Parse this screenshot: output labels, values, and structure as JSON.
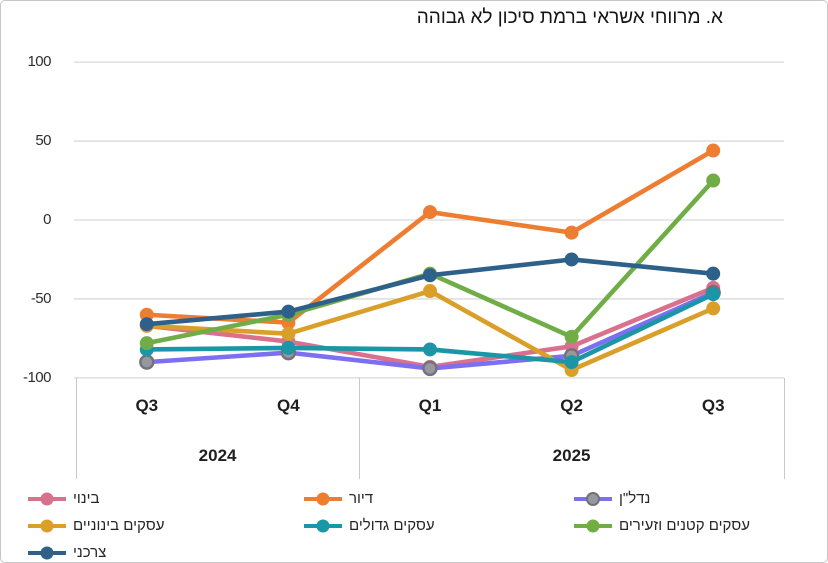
{
  "title": "א. מרווחי אשראי ברמת סיכון לא גבוהה",
  "chart_data": {
    "type": "line",
    "categories": [
      "Q3 2024",
      "Q4 2024",
      "Q1 2025",
      "Q2 2025",
      "Q3 2025"
    ],
    "x_groups": [
      {
        "year": "2024",
        "quarters": [
          "Q3",
          "Q4"
        ]
      },
      {
        "year": "2025",
        "quarters": [
          "Q1",
          "Q2",
          "Q3"
        ]
      }
    ],
    "yticks": [
      100,
      50,
      0,
      -50,
      -100
    ],
    "ylim": [
      -100,
      100
    ],
    "grid": true,
    "legend_position": "bottom",
    "series": [
      {
        "name": "בינוי",
        "color": "#D9718D",
        "values": [
          -67,
          -77,
          -93,
          -80,
          -43
        ]
      },
      {
        "name": "דיור",
        "color": "#ED7D31",
        "values": [
          -60,
          -65,
          5,
          -8,
          44
        ]
      },
      {
        "name": "נדל\"ן",
        "color": "#7C6FF0",
        "marker_fill": "#97979F",
        "marker_stroke": "#72727A",
        "values": [
          -90,
          -84,
          -94,
          -86,
          -46
        ]
      },
      {
        "name": "עסקים בינוניים",
        "color": "#DA9F28",
        "values": [
          -67,
          -72,
          -45,
          -95,
          -56
        ]
      },
      {
        "name": "עסקים גדולים",
        "color": "#1B96A6",
        "values": [
          -82,
          -81,
          -82,
          -90,
          -47
        ]
      },
      {
        "name": "עסקים קטנים וזעירים",
        "color": "#70AD47",
        "values": [
          -78,
          -60,
          -34,
          -74,
          25
        ]
      },
      {
        "name": "צרכני",
        "color": "#2E6189",
        "values": [
          -66,
          -58,
          -35,
          -25,
          -34
        ]
      }
    ]
  }
}
